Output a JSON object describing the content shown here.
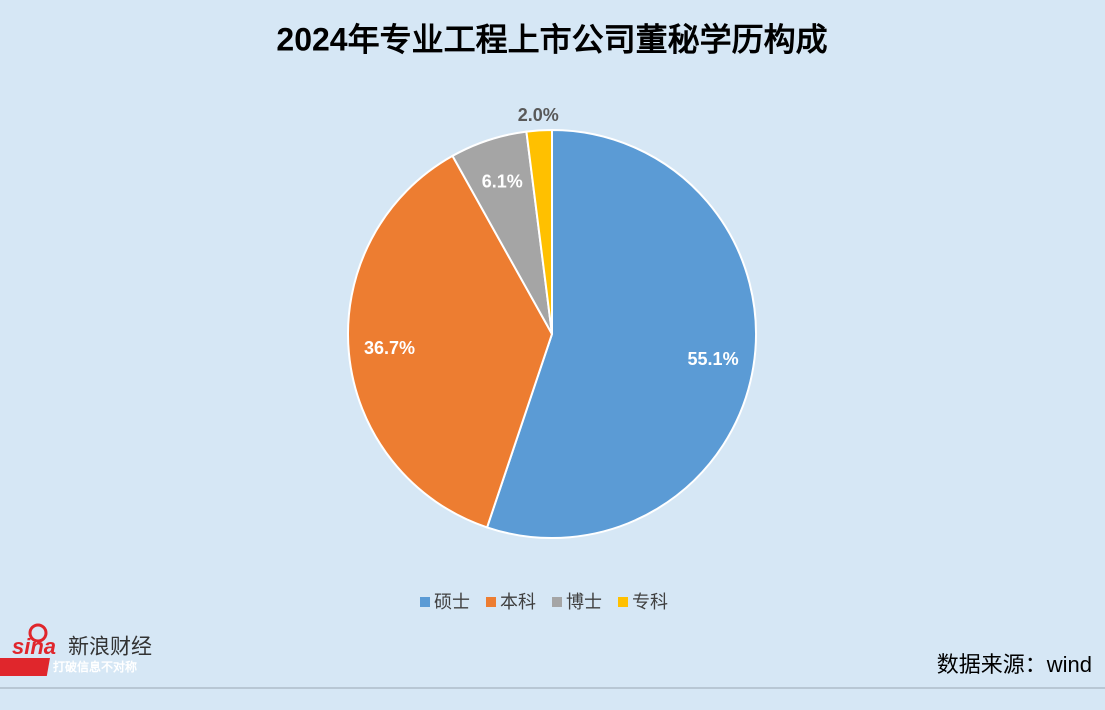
{
  "chart_data": {
    "type": "pie",
    "title": "2024年专业工程上市公司董秘学历构成",
    "categories": [
      "硕士",
      "本科",
      "博士",
      "专科"
    ],
    "values": [
      55.1,
      36.7,
      6.1,
      2.0
    ],
    "value_labels": [
      "55.1%",
      "36.7%",
      "6.1%",
      "2.0%"
    ],
    "colors": [
      "#5b9bd5",
      "#ed7d31",
      "#a5a5a5",
      "#ffc000"
    ],
    "legend": "bottom",
    "source": "数据来源：wind"
  },
  "logo": {
    "mark": "sina",
    "name": "新浪财经",
    "slogan": "打破信息不对称"
  }
}
